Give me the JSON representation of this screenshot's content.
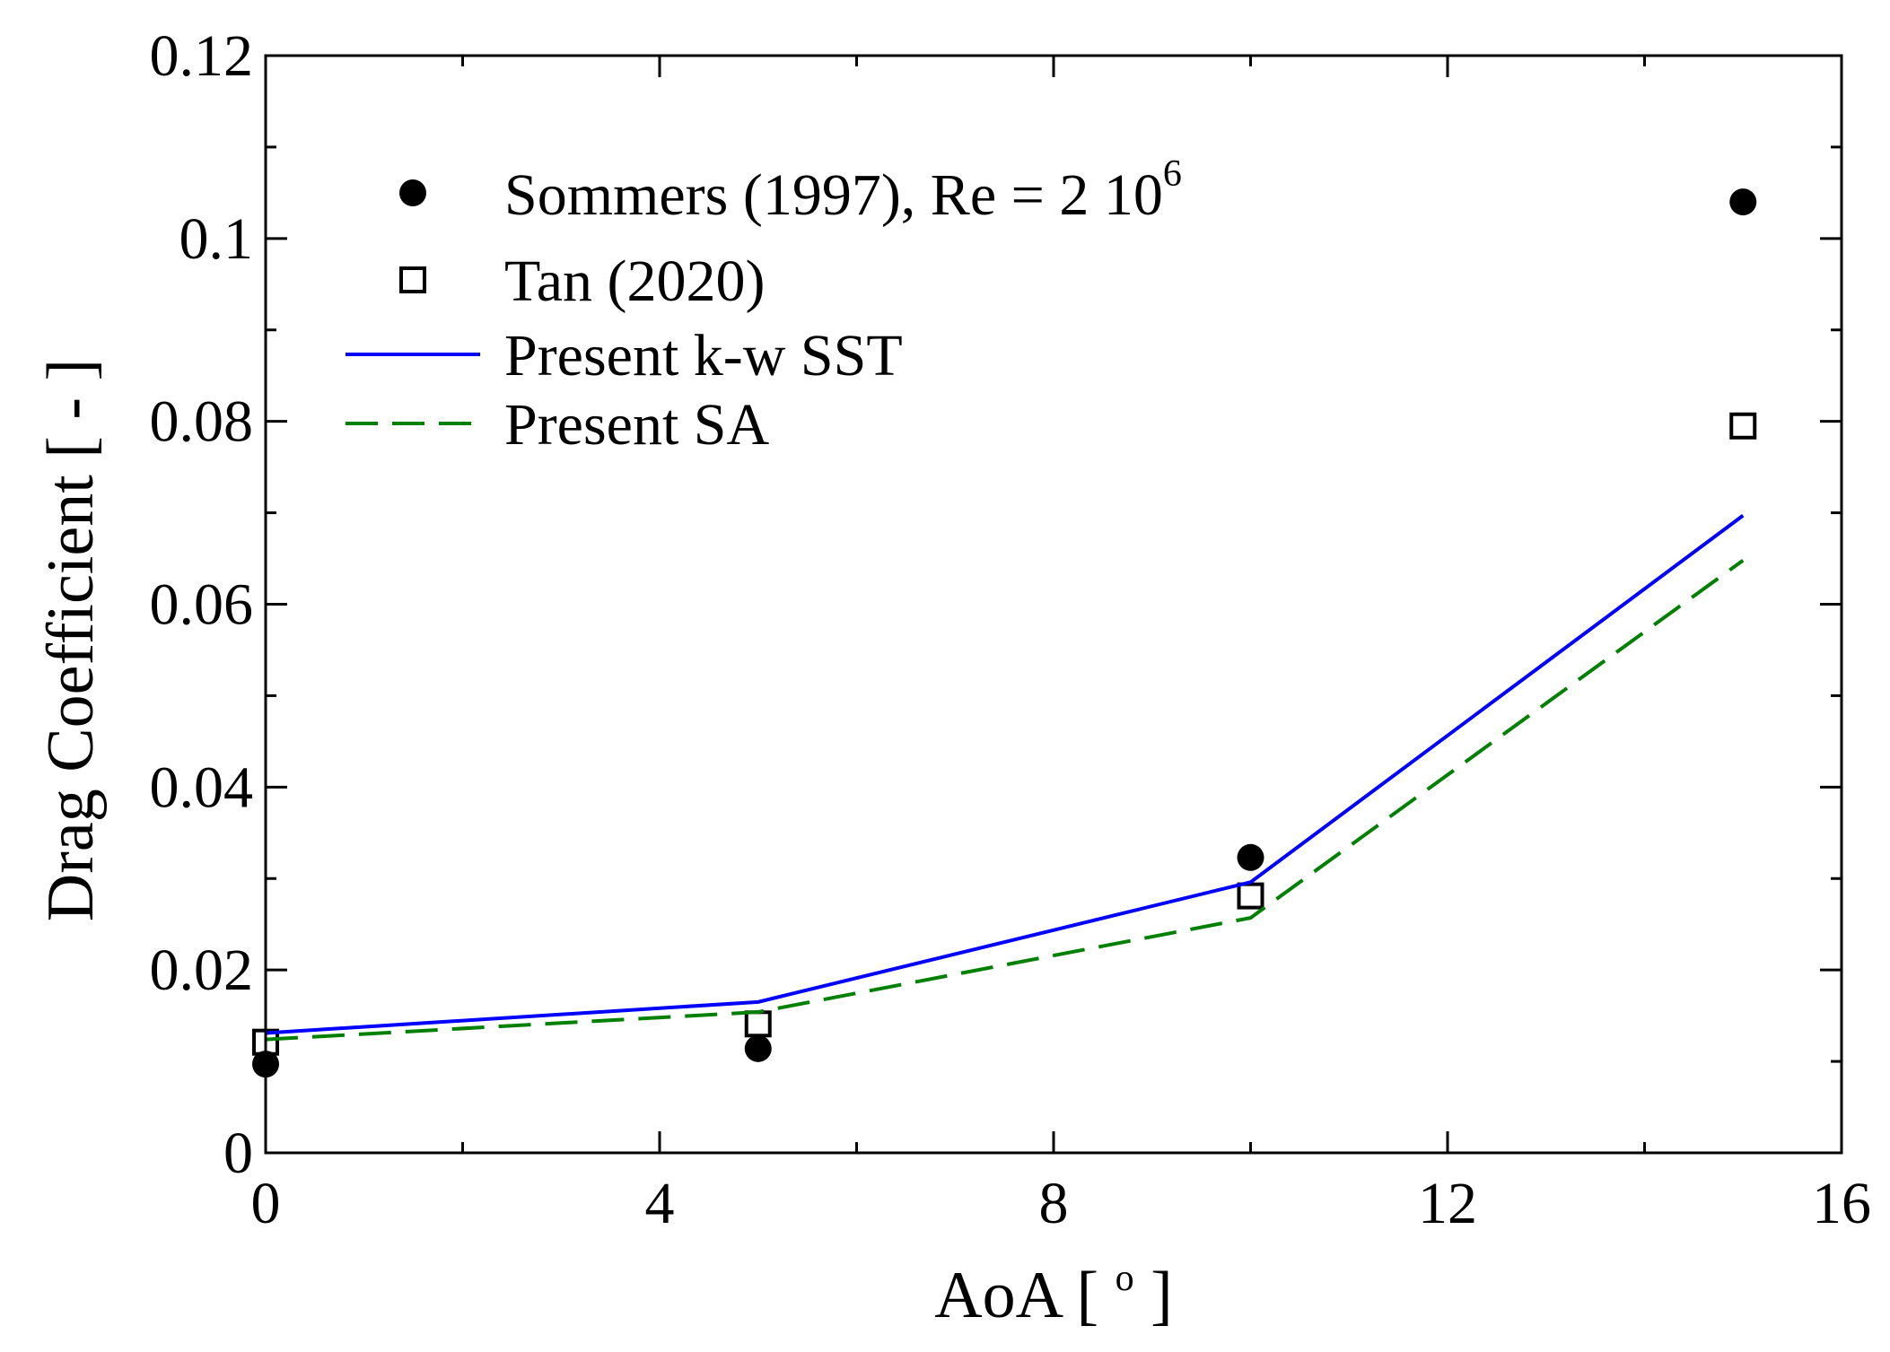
{
  "chart_data": {
    "type": "line",
    "xlabel": "AoA [ ",
    "xlabel_superscript": "o",
    "xlabel_suffix": " ]",
    "ylabel": "Drag Coefficient [ - ]",
    "xlim": [
      0,
      16
    ],
    "ylim": [
      0,
      0.12
    ],
    "x_ticks": [
      0,
      4,
      8,
      12,
      16
    ],
    "x_tick_labels": [
      "0",
      "4",
      "8",
      "12",
      "16"
    ],
    "y_ticks": [
      0,
      0.02,
      0.04,
      0.06,
      0.08,
      0.1,
      0.12
    ],
    "y_tick_labels": [
      "0",
      "0.02",
      "0.04",
      "0.06",
      "0.08",
      "0.1",
      "0.12"
    ],
    "legend_position": "top-left",
    "series": [
      {
        "name": "Sommers (1997), Re = 2 10",
        "name_superscript": "6",
        "style": "filled-circle",
        "color": "#000000",
        "x": [
          0,
          5,
          10,
          15
        ],
        "y": [
          0.0097,
          0.0114,
          0.0323,
          0.104
        ]
      },
      {
        "name": "Tan (2020)",
        "style": "open-square",
        "color": "#000000",
        "x": [
          0,
          5,
          10,
          15
        ],
        "y": [
          0.0121,
          0.0141,
          0.0281,
          0.0795
        ]
      },
      {
        "name": "Present k-w SST",
        "style": "solid-line",
        "color": "#0000ff",
        "x": [
          0,
          5,
          10,
          15
        ],
        "y": [
          0.0131,
          0.0165,
          0.0296,
          0.0697
        ]
      },
      {
        "name": "Present SA",
        "style": "dashed-line",
        "color": "#008000",
        "x": [
          0,
          5,
          10,
          15
        ],
        "y": [
          0.0124,
          0.0154,
          0.0257,
          0.0648
        ]
      }
    ]
  }
}
